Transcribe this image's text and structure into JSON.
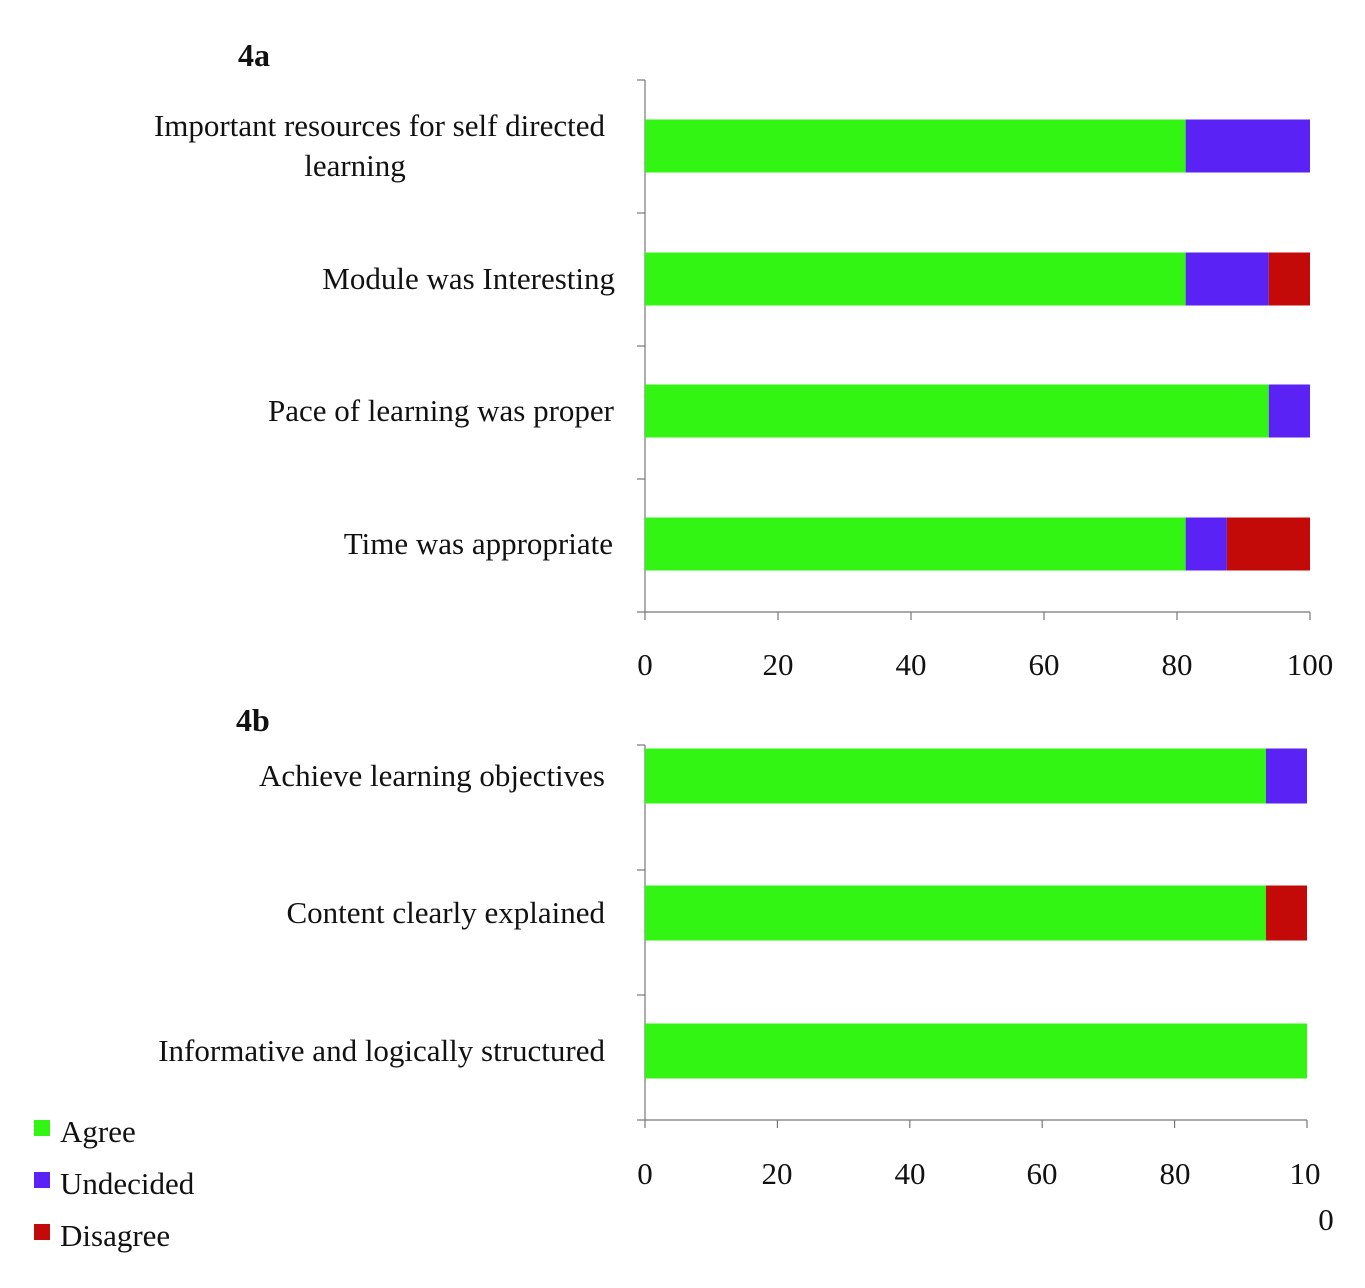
{
  "legend": [
    {
      "label": "Agree",
      "color": "#33f513"
    },
    {
      "label": "Undecided",
      "color": "#5a22f5"
    },
    {
      "label": "Disagree",
      "color": "#c40909"
    }
  ],
  "chart_data": [
    {
      "type": "bar",
      "orientation": "horizontal",
      "stacked": true,
      "title": "4a",
      "categories": [
        [
          "Important resources for self directed",
          "learning"
        ],
        [
          "Module was Interesting"
        ],
        [
          "Pace of learning was proper"
        ],
        [
          "Time  was appropriate"
        ]
      ],
      "series": [
        {
          "name": "Agree",
          "values": [
            81.3,
            81.3,
            93.8,
            81.3
          ]
        },
        {
          "name": "Undecided",
          "values": [
            18.7,
            12.5,
            6.2,
            6.2
          ]
        },
        {
          "name": "Disagree",
          "values": [
            0,
            6.2,
            0,
            12.5
          ]
        }
      ],
      "xlim": [
        0,
        100
      ],
      "xticks": [
        "0",
        "20",
        "40",
        "60",
        "80",
        "100"
      ],
      "grid": false
    },
    {
      "type": "bar",
      "orientation": "horizontal",
      "stacked": true,
      "title": "4b",
      "categories": [
        [
          "Achieve  learning  objectives"
        ],
        [
          "Content  clearly  explained"
        ],
        [
          "Informative  and logically  structured"
        ]
      ],
      "series": [
        {
          "name": "Agree",
          "values": [
            93.8,
            93.8,
            100
          ]
        },
        {
          "name": "Undecided",
          "values": [
            6.2,
            0,
            0
          ]
        },
        {
          "name": "Disagree",
          "values": [
            0,
            6.2,
            0
          ]
        }
      ],
      "xlim": [
        0,
        100
      ],
      "xticks": [
        "0",
        "20",
        "40",
        "60",
        "80",
        "10",
        "0"
      ],
      "grid": false
    }
  ]
}
